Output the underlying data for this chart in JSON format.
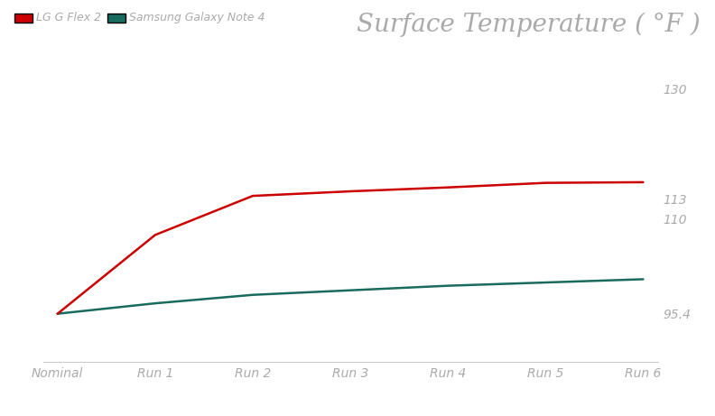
{
  "title": "Surface Temperature ( °F )",
  "legend_labels": [
    "LG G Flex 2",
    "Samsung Galaxy Note 4"
  ],
  "x_labels": [
    "Nominal",
    "Run 1",
    "Run 2",
    "Run 3",
    "Run 4",
    "Run 5",
    "Run 6"
  ],
  "lg_values": [
    95.4,
    107.5,
    113.5,
    114.2,
    114.8,
    115.5,
    115.6
  ],
  "samsung_values": [
    95.4,
    97.0,
    98.3,
    99.0,
    99.7,
    100.2,
    100.7
  ],
  "lg_color": "#cc0000",
  "samsung_color": "#1a6b5f",
  "ylim_min": 88,
  "ylim_max": 134,
  "ytick_vals": [
    95.4,
    110,
    113,
    130
  ],
  "ytick_labels": [
    "95.4",
    "110",
    "113",
    "130"
  ],
  "background_color": "#ffffff",
  "title_color": "#aaaaaa",
  "tick_color": "#aaaaaa",
  "spine_color": "#cccccc",
  "line_width": 1.8,
  "title_fontsize": 20,
  "tick_fontsize": 10,
  "legend_fontsize": 9
}
